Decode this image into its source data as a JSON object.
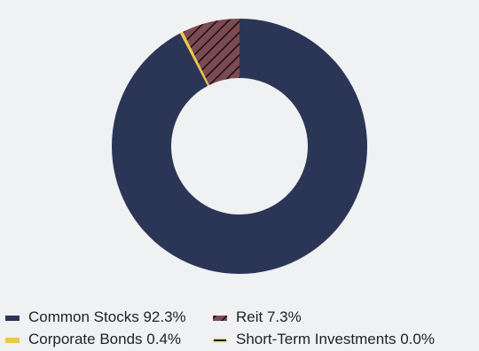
{
  "chart_data": {
    "type": "donut",
    "series": [
      {
        "name": "Common Stocks",
        "color": "#2b3656",
        "values": [
          92.3
        ],
        "value_labels": [
          "92.3%"
        ]
      },
      {
        "name": "Corporate Bonds",
        "color": "#eec845",
        "values": [
          0.4
        ],
        "value_labels": [
          "0.4%"
        ]
      },
      {
        "name": "Reit",
        "color": "#7d4a52",
        "hatch": true,
        "values": [
          7.3
        ],
        "value_labels": [
          "7.3%"
        ]
      },
      {
        "name": "Short-Term Investments",
        "color": "#e9e5b8",
        "values": [
          0.0
        ],
        "value_labels": [
          "0.0%"
        ]
      }
    ]
  }
}
